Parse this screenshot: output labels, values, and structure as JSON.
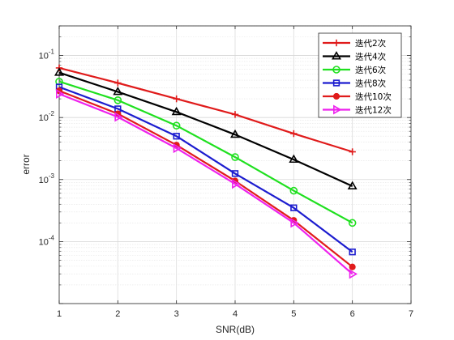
{
  "chart_data": {
    "type": "line",
    "title": "",
    "xlabel": "SNR(dB)",
    "ylabel": "error",
    "xlim": [
      1,
      7
    ],
    "ylim": [
      1e-05,
      0.3
    ],
    "yscale": "log",
    "x_ticks": [
      "1",
      "2",
      "3",
      "4",
      "5",
      "6",
      "7"
    ],
    "y_ticks": [
      {
        "value": 0.1,
        "base": "10",
        "exp": "-1"
      },
      {
        "value": 0.01,
        "base": "10",
        "exp": "-2"
      },
      {
        "value": 0.001,
        "base": "10",
        "exp": "-3"
      },
      {
        "value": 0.0001,
        "base": "10",
        "exp": "-4"
      }
    ],
    "grid": true,
    "minor_grid": true,
    "legend_position": "top-right",
    "x": [
      1,
      2,
      3,
      4,
      5,
      6
    ],
    "series": [
      {
        "name": "迭代2次",
        "color": "#e01b1b",
        "marker": "plus",
        "values": [
          0.063,
          0.036,
          0.02,
          0.0112,
          0.0055,
          0.0028
        ]
      },
      {
        "name": "迭代4次",
        "color": "#000000",
        "marker": "triangle-up",
        "values": [
          0.053,
          0.026,
          0.0123,
          0.0053,
          0.0021,
          0.00078
        ]
      },
      {
        "name": "迭代6次",
        "color": "#1fe01f",
        "marker": "circle",
        "values": [
          0.038,
          0.019,
          0.0074,
          0.0023,
          0.00066,
          0.0002
        ]
      },
      {
        "name": "迭代8次",
        "color": "#1c1ccf",
        "marker": "square",
        "values": [
          0.031,
          0.0138,
          0.005,
          0.00125,
          0.00035,
          6.8e-05
        ]
      },
      {
        "name": "迭代10次",
        "color": "#e01b1b",
        "marker": "filled-circle",
        "values": [
          0.027,
          0.0115,
          0.0036,
          0.00095,
          0.00022,
          3.9e-05
        ]
      },
      {
        "name": "迭代12次",
        "color": "#ee22ee",
        "marker": "triangle-right",
        "values": [
          0.024,
          0.0102,
          0.0032,
          0.00085,
          0.0002,
          3e-05
        ]
      }
    ]
  }
}
